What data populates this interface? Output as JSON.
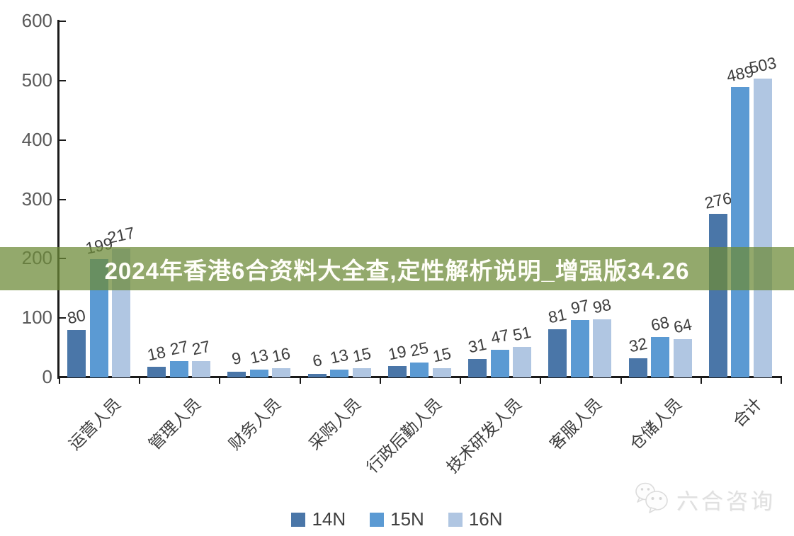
{
  "banner": {
    "text": "2024年香港6合资料大全查,定性解析说明_增强版34.26",
    "bg_color": "#6d8b38",
    "bg_opacity": 0.74,
    "text_color": "#fffef8"
  },
  "chart_data": {
    "type": "bar",
    "title": "",
    "categories": [
      "运营人员",
      "管理人员",
      "财务人员",
      "采购人员",
      "行政后勤人员",
      "技术研发人员",
      "客服人员",
      "仓储人员",
      "合计"
    ],
    "series": [
      {
        "name": "14N",
        "color": "#4a76a8",
        "values": [
          80,
          18,
          9,
          6,
          19,
          31,
          81,
          32,
          276
        ]
      },
      {
        "name": "15N",
        "color": "#5b9ad3",
        "values": [
          199,
          27,
          13,
          13,
          25,
          47,
          97,
          68,
          489
        ]
      },
      {
        "name": "16N",
        "color": "#b0c6e2",
        "values": [
          217,
          27,
          16,
          15,
          15,
          51,
          98,
          64,
          503
        ]
      }
    ],
    "ylim": [
      0,
      600
    ],
    "yticks": [
      0,
      100,
      200,
      300,
      400,
      500,
      600
    ],
    "grid": false,
    "legend_position": "bottom",
    "value_labels_shown": true,
    "axis_color": "#1a1a1a",
    "tick_label_color": "#595959",
    "value_label_color": "#3d3d3d"
  },
  "watermark": {
    "text": "六合咨询",
    "icon": "wechat-icon"
  }
}
